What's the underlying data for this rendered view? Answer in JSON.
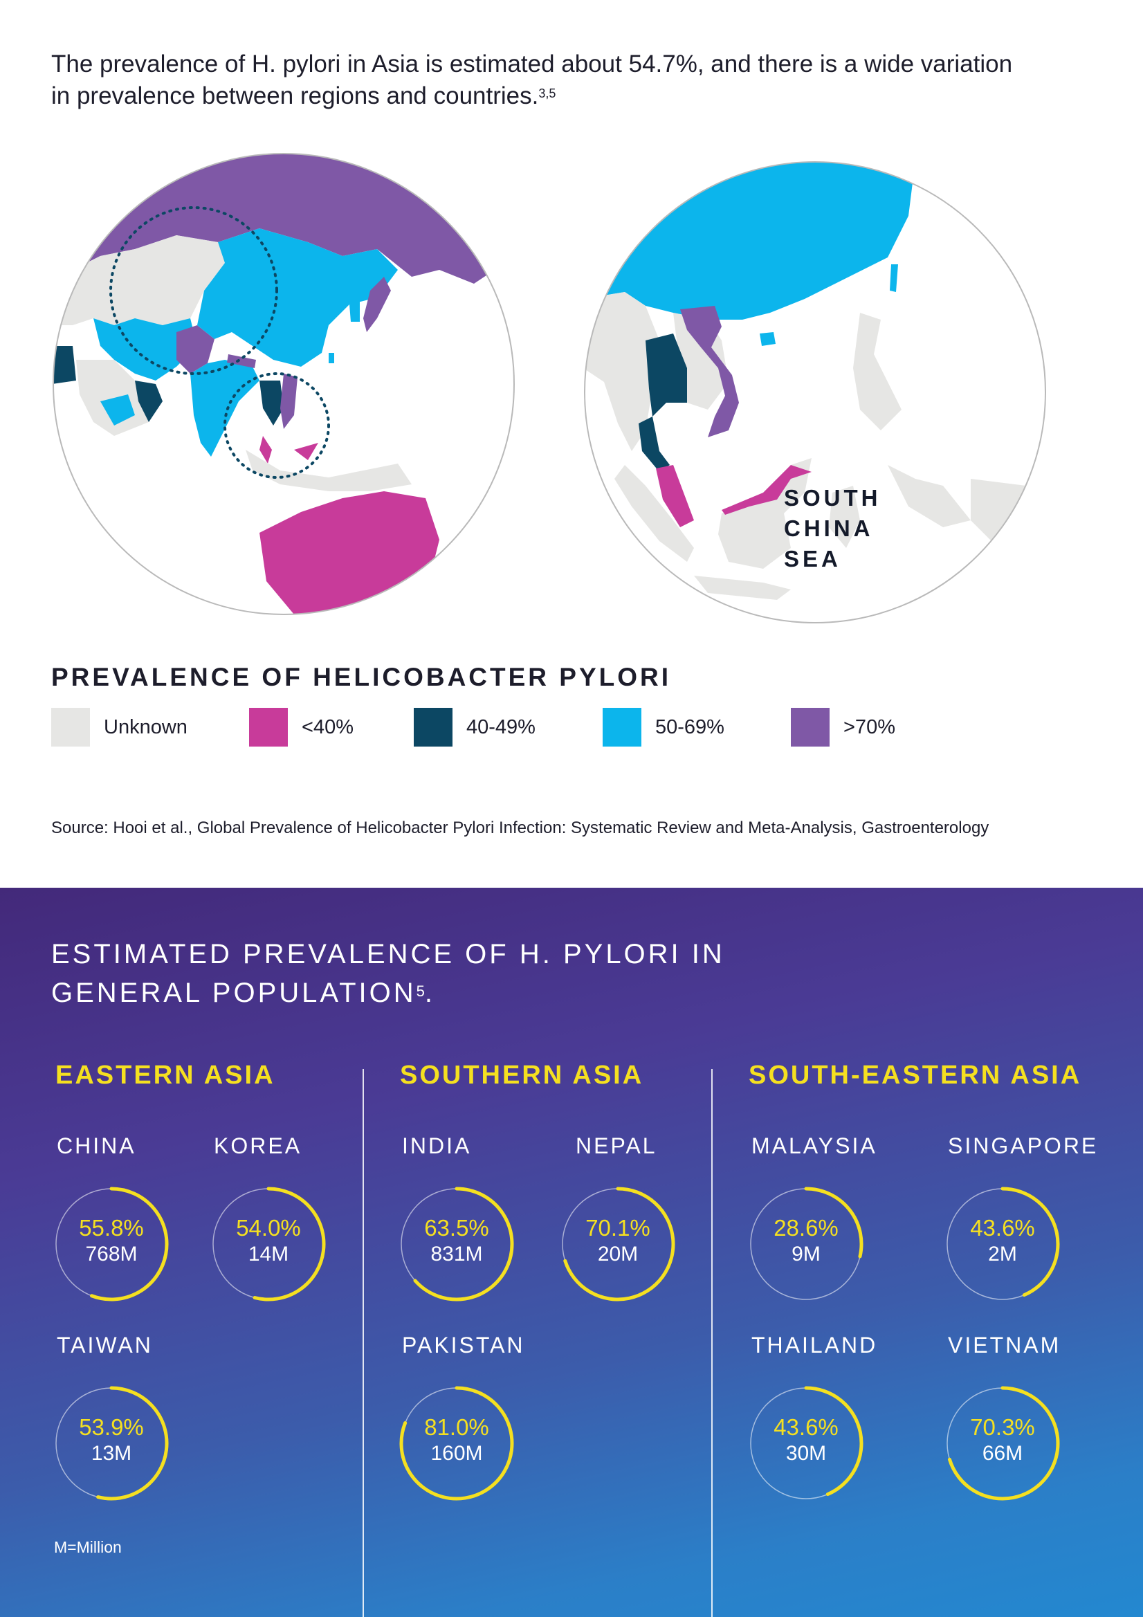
{
  "intro": {
    "text": "The prevalence of H. pylori in Asia is estimated about 54.7%, and there is a wide variation in prevalence between regions and countries.",
    "refs": "3,5"
  },
  "map": {
    "sea_label": [
      "SOUTH",
      "CHINA",
      "SEA"
    ]
  },
  "legend": {
    "title": "PREVALENCE OF HELICOBACTER PYLORI",
    "items": [
      {
        "label": "Unknown",
        "color": "#e6e6e4"
      },
      {
        "label": "<40%",
        "color": "#c83b9a"
      },
      {
        "label": "40-49%",
        "color": "#0c4763"
      },
      {
        "label": "50-69%",
        "color": "#0cb5ec"
      },
      {
        "label": ">70%",
        "color": "#7f58a6"
      }
    ]
  },
  "source": "Source: Hooi et al., Global Prevalence of Helicobacter Pylori Infection: Systematic Review and Meta-Analysis, Gastroenterology",
  "panel": {
    "title_line1": "ESTIMATED PREVALENCE OF H. PYLORI IN",
    "title_line2": "GENERAL POPULATION",
    "title_ref": "5",
    "title_end": ".",
    "accent_color": "#f5e020",
    "regions": [
      {
        "name": "EASTERN ASIA",
        "countries": [
          {
            "name": "CHINA",
            "percent": "55.8%",
            "population": "768M",
            "value": 55.8
          },
          {
            "name": "KOREA",
            "percent": "54.0%",
            "population": "14M",
            "value": 54.0
          },
          {
            "name": "TAIWAN",
            "percent": "53.9%",
            "population": "13M",
            "value": 53.9
          }
        ]
      },
      {
        "name": "SOUTHERN ASIA",
        "countries": [
          {
            "name": "INDIA",
            "percent": "63.5%",
            "population": "831M",
            "value": 63.5
          },
          {
            "name": "NEPAL",
            "percent": "70.1%",
            "population": "20M",
            "value": 70.1
          },
          {
            "name": "PAKISTAN",
            "percent": "81.0%",
            "population": "160M",
            "value": 81.0
          }
        ]
      },
      {
        "name": "SOUTH-EASTERN ASIA",
        "countries": [
          {
            "name": "MALAYSIA",
            "percent": "28.6%",
            "population": "9M",
            "value": 28.6
          },
          {
            "name": "SINGAPORE",
            "percent": "43.6%",
            "population": "2M",
            "value": 43.6
          },
          {
            "name": "THAILAND",
            "percent": "43.6%",
            "population": "30M",
            "value": 43.6
          },
          {
            "name": "VIETNAM",
            "percent": "70.3%",
            "population": "66M",
            "value": 70.3
          }
        ]
      }
    ],
    "footnote": "M=Million"
  }
}
